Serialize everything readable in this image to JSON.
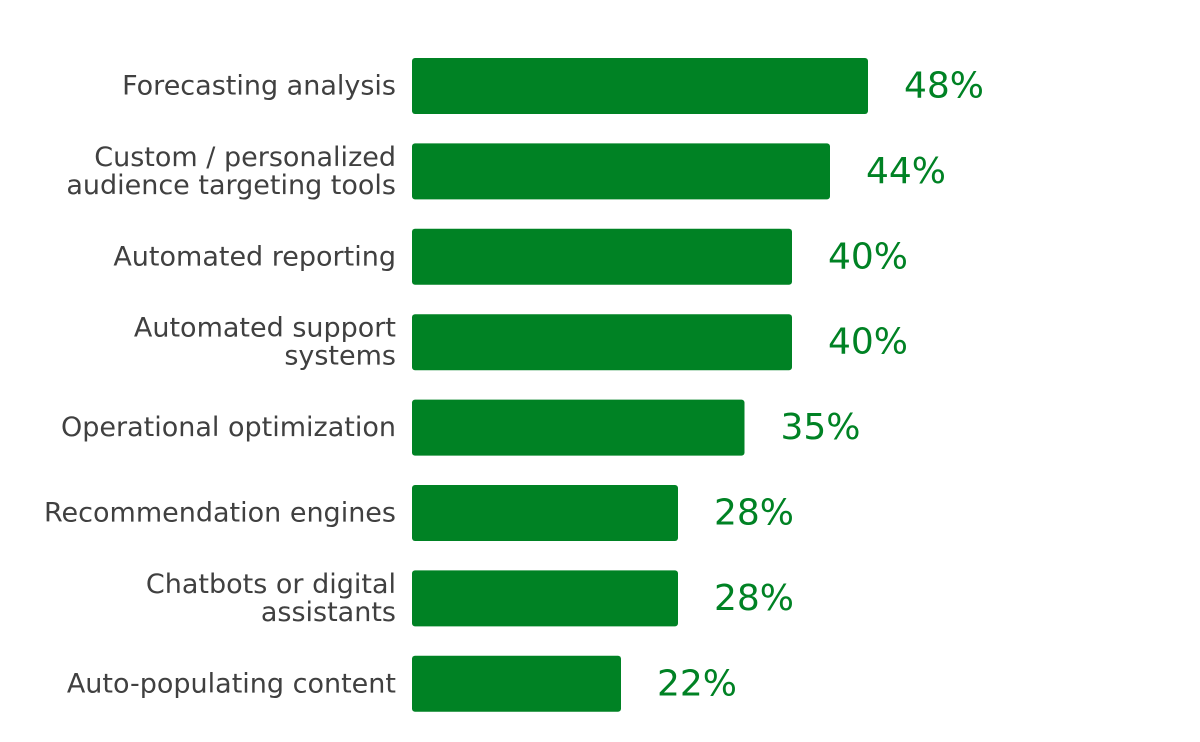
{
  "chart_data": {
    "type": "bar",
    "orientation": "horizontal",
    "categories": [
      "Forecasting analysis",
      "Custom / personalized audience targeting tools",
      "Automated reporting",
      "Automated support systems",
      "Operational optimization",
      "Recommendation engines",
      "Chatbots or digital assistants",
      "Auto-populating content"
    ],
    "category_lines": [
      [
        "Forecasting analysis"
      ],
      [
        "Custom / personalized",
        "audience targeting tools"
      ],
      [
        "Automated reporting"
      ],
      [
        "Automated support",
        "systems"
      ],
      [
        "Operational optimization"
      ],
      [
        "Recommendation engines"
      ],
      [
        "Chatbots or digital",
        "assistants"
      ],
      [
        "Auto-populating content"
      ]
    ],
    "values": [
      48,
      44,
      40,
      40,
      35,
      28,
      28,
      22
    ],
    "value_labels": [
      "48%",
      "44%",
      "40%",
      "40%",
      "35%",
      "28%",
      "28%",
      "22%"
    ],
    "unit": "%",
    "title": "",
    "xlabel": "",
    "ylabel": "",
    "xlim": [
      0,
      100
    ],
    "grid": false,
    "legend": "none",
    "bar_color": "#008224",
    "label_color": "#404040",
    "value_label_color": "#008224"
  }
}
